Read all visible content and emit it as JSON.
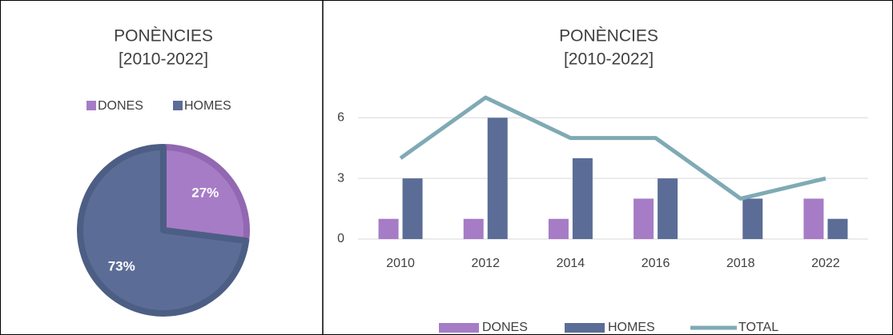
{
  "chart_data": [
    {
      "type": "pie",
      "title": "PONÈNCIES",
      "subtitle": "[2010-2022]",
      "categories": [
        "DONES",
        "HOMES"
      ],
      "values": [
        27,
        73
      ],
      "value_labels": [
        "27%",
        "73%"
      ],
      "colors": [
        "#a67cc6",
        "#5b6d96"
      ],
      "legend": "top"
    },
    {
      "type": "bar-line",
      "title": "PONÈNCIES",
      "subtitle": "[2010-2022]",
      "categories": [
        "2010",
        "2012",
        "2014",
        "2016",
        "2018",
        "2022"
      ],
      "series": [
        {
          "name": "DONES",
          "color": "#a67cc6",
          "values": [
            1,
            1,
            1,
            2,
            0,
            2
          ]
        },
        {
          "name": "HOMES",
          "color": "#5b6d96",
          "values": [
            3,
            6,
            4,
            3,
            2,
            1
          ]
        },
        {
          "name": "TOTAL",
          "color": "#7faab4",
          "type": "line",
          "values": [
            4,
            7,
            5,
            5,
            2,
            3
          ]
        }
      ],
      "ylim": [
        0,
        7
      ],
      "yticks": [
        0,
        3,
        6
      ],
      "grid": true,
      "legend": "bottom"
    }
  ]
}
